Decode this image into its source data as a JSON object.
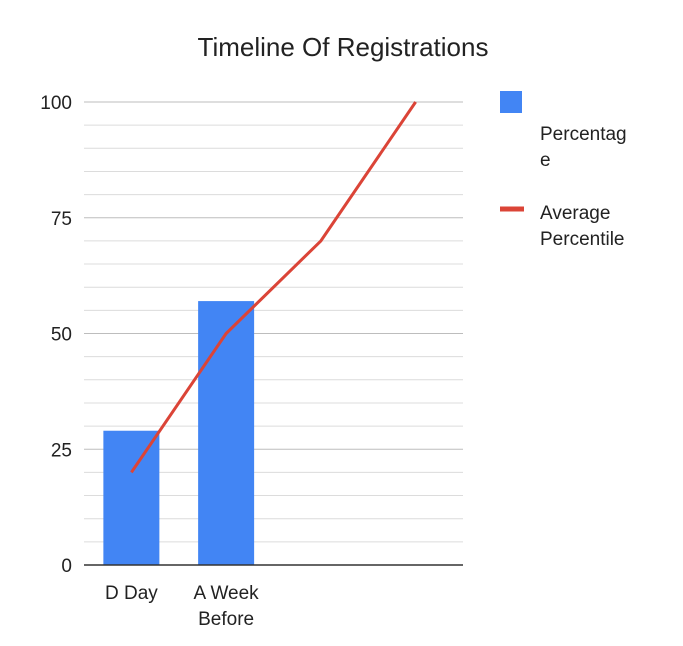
{
  "chart_data": {
    "type": "bar",
    "title": "Timeline Of Registrations",
    "xlabel": "",
    "ylabel": "",
    "ylim": [
      0,
      100
    ],
    "yticks": [
      "0",
      "25",
      "50",
      "75",
      "100"
    ],
    "categories": [
      "D Day",
      "A Week Before",
      "",
      ""
    ],
    "category_lines": [
      [
        "D Day"
      ],
      [
        "A Week",
        "Before"
      ],
      [],
      []
    ],
    "series": [
      {
        "name": "Percentage",
        "type": "bar",
        "color": "#4285F4",
        "values": [
          29,
          57,
          null,
          null
        ]
      },
      {
        "name": "Average Percentile",
        "type": "line",
        "color": "#DB4437",
        "values": [
          20,
          50,
          70,
          100
        ]
      }
    ],
    "legend": {
      "position": "right",
      "items": [
        {
          "lines": [
            "Percentag",
            "e"
          ],
          "marker": "square",
          "color": "#4285F4"
        },
        {
          "lines": [
            "Average",
            "Percentile"
          ],
          "marker": "line",
          "color": "#DB4437"
        }
      ]
    },
    "grid": true
  }
}
